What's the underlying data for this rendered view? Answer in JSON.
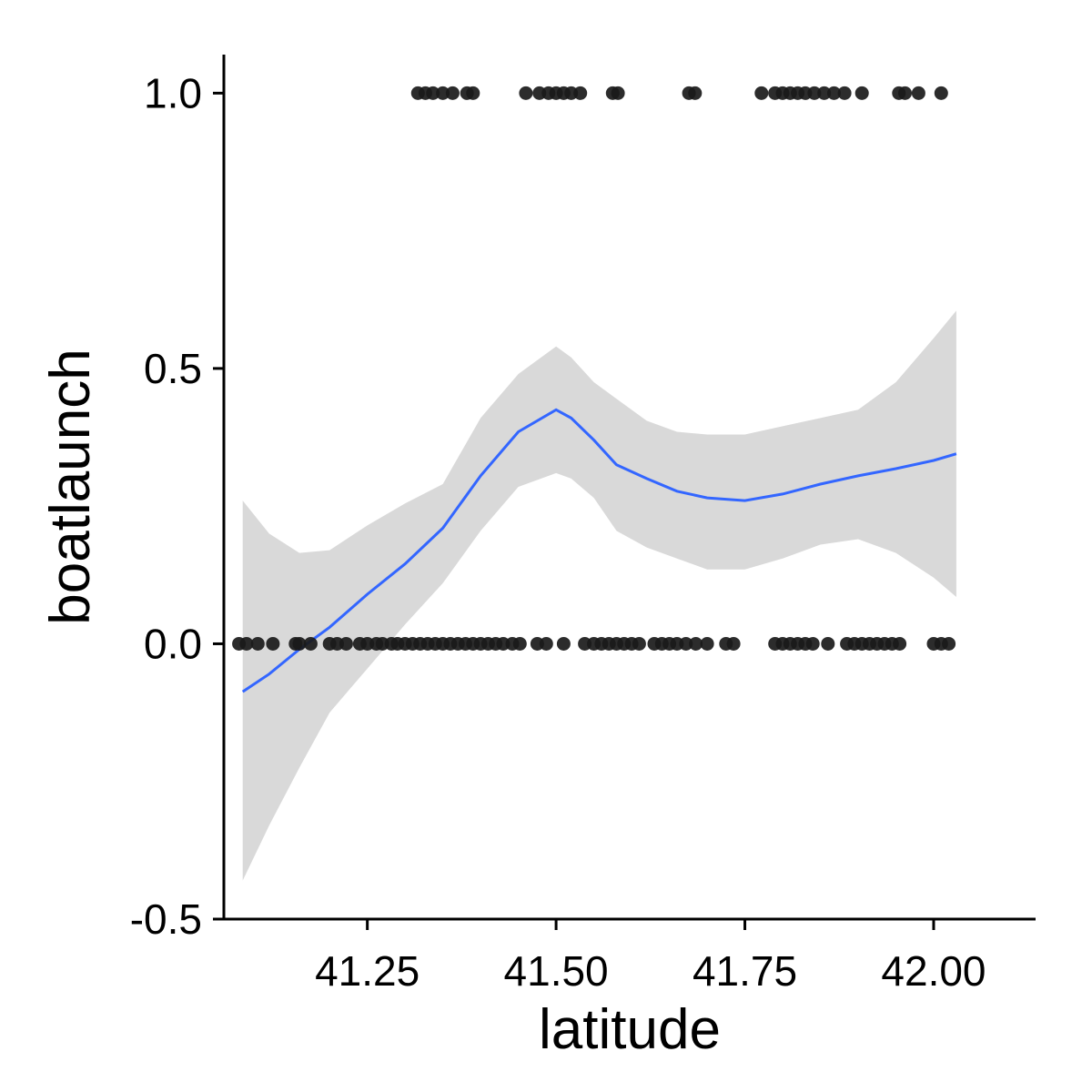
{
  "chart_data": {
    "type": "scatter",
    "xlabel": "latitude",
    "ylabel": "boatlaunch",
    "xlim": [
      41.06,
      42.135
    ],
    "ylim": [
      -0.5,
      1.07
    ],
    "xticks": [
      41.25,
      41.5,
      41.75,
      42.0
    ],
    "xtick_labels": [
      "41.25",
      "41.50",
      "41.75",
      "42.00"
    ],
    "yticks": [
      -0.5,
      0.0,
      0.5,
      1.0
    ],
    "ytick_labels": [
      "-0.5",
      "0.0",
      "0.5",
      "1.0"
    ],
    "grid": false,
    "points": {
      "color": "#1a1a1a",
      "y1_x": [
        41.317,
        41.327,
        41.337,
        41.35,
        41.363,
        41.382,
        41.39,
        41.46,
        41.478,
        41.49,
        41.5,
        41.51,
        41.52,
        41.532,
        41.575,
        41.582,
        41.676,
        41.684,
        41.772,
        41.79,
        41.8,
        41.81,
        41.82,
        41.83,
        41.842,
        41.855,
        41.868,
        41.882,
        41.905,
        41.954,
        41.962,
        41.98,
        42.01
      ],
      "y0_x": [
        41.08,
        41.09,
        41.105,
        41.125,
        41.155,
        41.16,
        41.175,
        41.2,
        41.21,
        41.222,
        41.24,
        41.25,
        41.262,
        41.27,
        41.282,
        41.29,
        41.3,
        41.31,
        41.32,
        41.33,
        41.34,
        41.35,
        41.36,
        41.37,
        41.38,
        41.39,
        41.4,
        41.41,
        41.42,
        41.43,
        41.442,
        41.452,
        41.475,
        41.487,
        41.51,
        41.538,
        41.55,
        41.56,
        41.57,
        41.58,
        41.59,
        41.6,
        41.61,
        41.63,
        41.64,
        41.65,
        41.66,
        41.672,
        41.685,
        41.7,
        41.725,
        41.735,
        41.79,
        41.8,
        41.81,
        41.82,
        41.83,
        41.84,
        41.86,
        41.885,
        41.895,
        41.905,
        41.915,
        41.925,
        41.935,
        41.945,
        41.955,
        42.0,
        42.01,
        42.02
      ]
    },
    "smooth": {
      "color": "#3366ff",
      "band_color": "#d9d9d9",
      "x": [
        41.085,
        41.12,
        41.16,
        41.2,
        41.25,
        41.3,
        41.35,
        41.4,
        41.45,
        41.5,
        41.52,
        41.55,
        41.58,
        41.62,
        41.66,
        41.7,
        41.75,
        41.8,
        41.85,
        41.9,
        41.95,
        42.0,
        42.03
      ],
      "fit": [
        -0.087,
        -0.055,
        -0.01,
        0.03,
        0.09,
        0.145,
        0.21,
        0.305,
        0.385,
        0.425,
        0.41,
        0.37,
        0.325,
        0.3,
        0.277,
        0.265,
        0.26,
        0.272,
        0.29,
        0.305,
        0.318,
        0.333,
        0.345
      ],
      "upper": [
        0.26,
        0.2,
        0.165,
        0.17,
        0.215,
        0.255,
        0.29,
        0.41,
        0.49,
        0.54,
        0.52,
        0.475,
        0.445,
        0.405,
        0.385,
        0.38,
        0.38,
        0.395,
        0.41,
        0.425,
        0.475,
        0.555,
        0.605
      ],
      "lower": [
        -0.43,
        -0.33,
        -0.225,
        -0.125,
        -0.045,
        0.035,
        0.11,
        0.205,
        0.285,
        0.31,
        0.3,
        0.265,
        0.205,
        0.175,
        0.155,
        0.135,
        0.135,
        0.155,
        0.18,
        0.19,
        0.165,
        0.12,
        0.085
      ]
    }
  }
}
